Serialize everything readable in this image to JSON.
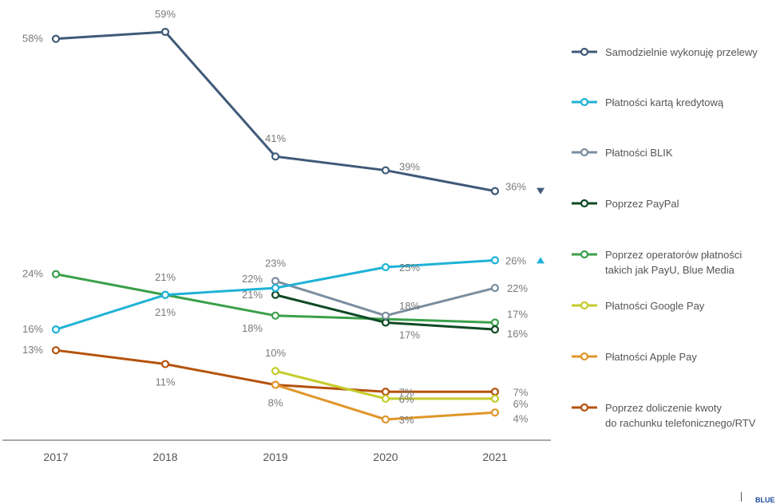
{
  "chart_data": {
    "type": "line",
    "x": [
      "2017",
      "2018",
      "2019",
      "2020",
      "2021"
    ],
    "ylim": [
      0,
      62
    ],
    "grid": false,
    "legend_position": "right",
    "series": [
      {
        "name": "Samodzielnie wykonuję przelewy",
        "values": [
          58,
          59,
          41,
          39,
          36
        ],
        "labels": [
          "58%",
          "59%",
          "41%",
          "39%",
          "36%"
        ],
        "color": "#3f5a78",
        "trend": "down"
      },
      {
        "name": "Płatności kartą kredytową",
        "values": [
          16,
          21,
          22,
          25,
          26
        ],
        "labels": [
          "16%",
          "21%",
          "22%",
          "25%",
          "26%"
        ],
        "color": "#1fb2d6",
        "trend": "up"
      },
      {
        "name": "Płatności BLIK",
        "values": [
          null,
          null,
          23,
          18,
          22
        ],
        "labels": [
          "",
          "",
          "23%",
          "18%",
          "22%"
        ],
        "color": "#7b8ea0"
      },
      {
        "name": "Poprzez PayPal",
        "values": [
          null,
          null,
          21,
          17,
          16
        ],
        "labels": [
          "",
          "",
          "21%",
          "17%",
          "16%"
        ],
        "color": "#0f4a25"
      },
      {
        "name": "Poprzez operatorów płatności takich jak PayU, Blue Media",
        "values": [
          24,
          21,
          18,
          17.5,
          17
        ],
        "labels": [
          "24%",
          "21%",
          "18%",
          "",
          "17%"
        ],
        "color": "#3aa04a"
      },
      {
        "name": "Płatności Google Pay",
        "values": [
          null,
          null,
          10,
          6,
          6
        ],
        "labels": [
          "",
          "",
          "10%",
          "6%",
          "6%"
        ],
        "color": "#c4cc2a"
      },
      {
        "name": "Płatności Apple Pay",
        "values": [
          null,
          null,
          8,
          3,
          4
        ],
        "labels": [
          "",
          "",
          "",
          "3%",
          "4%"
        ],
        "color": "#e0962a"
      },
      {
        "name": "Poprzez doliczenie kwoty do rachunku telefonicznego/RTV",
        "values": [
          13,
          11,
          8,
          7,
          7
        ],
        "labels": [
          "13%",
          "11%",
          "8%",
          "7%",
          "7%"
        ],
        "color": "#b5530d"
      }
    ],
    "legend_lines": [
      [
        "Samodzielnie wykonuję przelewy"
      ],
      [
        "Płatności kartą kredytową"
      ],
      [
        "Płatności BLIK"
      ],
      [
        "Poprzez PayPal"
      ],
      [
        "Poprzez operatorów płatności",
        "takich jak PayU, Blue Media"
      ],
      [
        "Płatności Google Pay"
      ],
      [
        "Płatności Apple Pay"
      ],
      [
        "Poprzez doliczenie kwoty",
        "do rachunku telefonicznego/RTV"
      ]
    ]
  },
  "brand_text": "BLUE"
}
